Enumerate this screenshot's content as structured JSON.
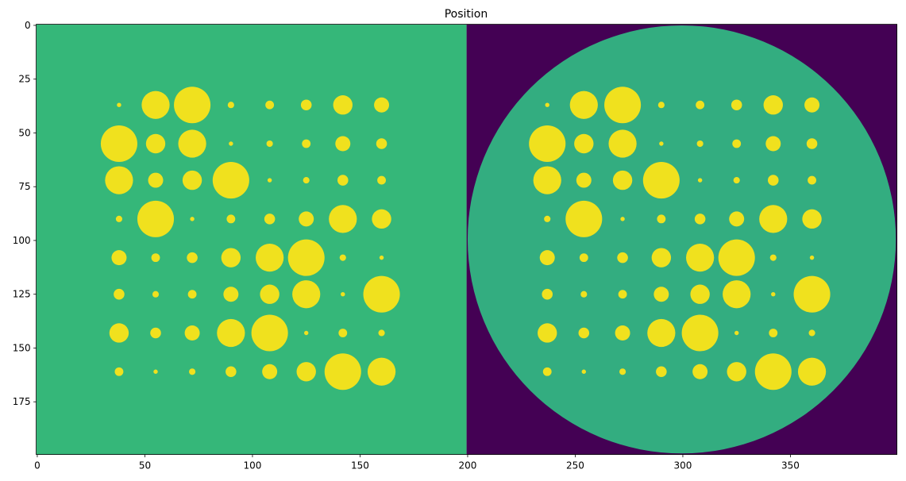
{
  "chart_data": {
    "type": "image",
    "title": "Position",
    "xlim": [
      -0.5,
      399.5
    ],
    "ylim": [
      199.5,
      -0.5
    ],
    "xticks": [
      0,
      50,
      100,
      150,
      200,
      250,
      300,
      350
    ],
    "yticks": [
      0,
      25,
      50,
      75,
      100,
      125,
      150,
      175
    ],
    "panels": [
      {
        "xlim": [
          -0.5,
          199.5
        ],
        "background": "#35b779",
        "color": "#f0e11e",
        "columns": [
          38,
          55,
          72,
          90,
          108,
          125,
          142,
          160
        ],
        "rows": [
          37,
          55,
          72,
          90,
          108,
          125,
          143,
          161
        ],
        "radii": [
          [
            1,
            6.5,
            8.5,
            1.5,
            2,
            2.5,
            4.5,
            3.5
          ],
          [
            8.5,
            4.5,
            6.5,
            1,
            1.5,
            2,
            3.5,
            2.5
          ],
          [
            6.5,
            3.5,
            4.5,
            8.5,
            1,
            1.5,
            2.5,
            2
          ],
          [
            1.5,
            8.5,
            1,
            2,
            2.5,
            3.5,
            6.5,
            4.5
          ],
          [
            3.5,
            2,
            2.5,
            4.5,
            6.5,
            8.5,
            1.5,
            1
          ],
          [
            2.5,
            1.5,
            2,
            3.5,
            4.5,
            6.5,
            1,
            8.5
          ],
          [
            4.5,
            2.5,
            3.5,
            6.5,
            8.5,
            1,
            2,
            1.5
          ],
          [
            2,
            1,
            1.5,
            2.5,
            3.5,
            4.5,
            8.5,
            6.5
          ]
        ]
      },
      {
        "xlim": [
          199.5,
          399.5
        ],
        "background": "#440154",
        "color": "#f0e11e",
        "disc": {
          "x": 299.5,
          "y": 99.5,
          "r": 99.5,
          "color": "#33ad80"
        },
        "columns": [
          237,
          254,
          272,
          290,
          308,
          325,
          342,
          360
        ],
        "rows": [
          37,
          55,
          72,
          90,
          108,
          125,
          143,
          161
        ],
        "radii": [
          [
            1,
            6.5,
            8.5,
            1.5,
            2,
            2.5,
            4.5,
            3.5
          ],
          [
            8.5,
            4.5,
            6.5,
            1,
            1.5,
            2,
            3.5,
            2.5
          ],
          [
            6.5,
            3.5,
            4.5,
            8.5,
            1,
            1.5,
            2.5,
            2
          ],
          [
            1.5,
            8.5,
            1,
            2,
            2.5,
            3.5,
            6.5,
            4.5
          ],
          [
            3.5,
            2,
            2.5,
            4.5,
            6.5,
            8.5,
            1.5,
            1
          ],
          [
            2.5,
            1.5,
            2,
            3.5,
            4.5,
            6.5,
            1,
            8.5
          ],
          [
            4.5,
            2.5,
            3.5,
            6.5,
            8.5,
            1,
            2,
            1.5
          ],
          [
            2,
            1,
            1.5,
            2.5,
            3.5,
            4.5,
            8.5,
            6.5
          ]
        ]
      }
    ]
  }
}
